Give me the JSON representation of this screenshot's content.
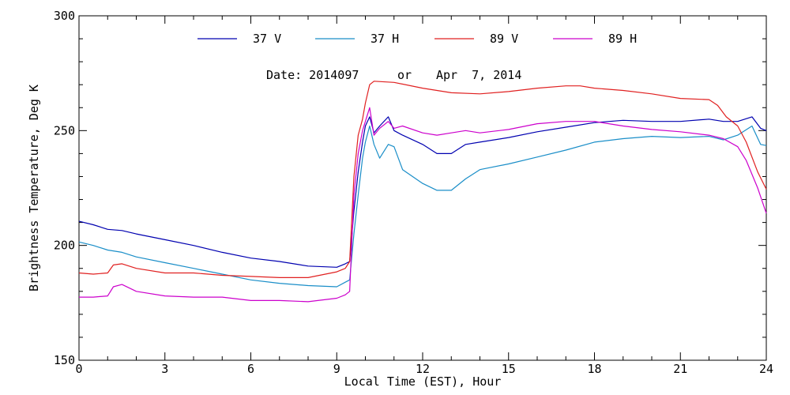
{
  "chart_data": {
    "type": "line",
    "xlabel": "Local Time (EST), Hour",
    "ylabel": "Brightness Temperature, Deg K",
    "xlim": [
      0,
      24
    ],
    "ylim": [
      150,
      300
    ],
    "xticks": [
      0,
      3,
      6,
      9,
      12,
      15,
      18,
      21,
      24
    ],
    "yticks": [
      150,
      200,
      250,
      300
    ],
    "annotation": {
      "date_label": "Date: 2014097",
      "or_label": "or",
      "date_text": "Apr  7, 2014"
    },
    "legend_position": "top",
    "series": [
      {
        "name": "37 V",
        "color": "#0000b0",
        "points": [
          [
            0,
            210.5
          ],
          [
            0.5,
            209
          ],
          [
            1,
            207
          ],
          [
            1.5,
            206.5
          ],
          [
            2,
            205
          ],
          [
            3,
            202.5
          ],
          [
            4,
            200
          ],
          [
            5,
            197
          ],
          [
            6,
            194.5
          ],
          [
            7,
            193
          ],
          [
            8,
            191
          ],
          [
            9,
            190.5
          ],
          [
            9.3,
            192
          ],
          [
            9.45,
            193
          ],
          [
            9.6,
            215
          ],
          [
            9.75,
            232
          ],
          [
            9.9,
            245
          ],
          [
            10,
            252
          ],
          [
            10.15,
            256
          ],
          [
            10.3,
            249
          ],
          [
            10.5,
            252
          ],
          [
            10.8,
            256
          ],
          [
            11,
            250
          ],
          [
            11.3,
            248
          ],
          [
            12,
            244
          ],
          [
            12.5,
            240
          ],
          [
            13,
            240
          ],
          [
            13.5,
            244
          ],
          [
            14,
            245
          ],
          [
            15,
            247
          ],
          [
            16,
            249.5
          ],
          [
            17,
            251.5
          ],
          [
            18,
            253.5
          ],
          [
            19,
            254.5
          ],
          [
            20,
            254
          ],
          [
            21,
            254
          ],
          [
            22,
            255
          ],
          [
            22.5,
            254
          ],
          [
            23,
            254
          ],
          [
            23.5,
            256
          ],
          [
            23.8,
            251
          ],
          [
            24,
            250
          ]
        ]
      },
      {
        "name": "37 H",
        "color": "#1a8ec8",
        "points": [
          [
            0,
            201.5
          ],
          [
            0.5,
            200
          ],
          [
            1,
            198
          ],
          [
            1.5,
            197
          ],
          [
            2,
            195
          ],
          [
            3,
            192.5
          ],
          [
            4,
            190
          ],
          [
            5,
            187.5
          ],
          [
            6,
            185
          ],
          [
            7,
            183.5
          ],
          [
            8,
            182.5
          ],
          [
            9,
            182
          ],
          [
            9.3,
            184
          ],
          [
            9.45,
            185
          ],
          [
            9.6,
            205
          ],
          [
            9.75,
            222
          ],
          [
            9.9,
            238
          ],
          [
            10,
            245
          ],
          [
            10.15,
            252
          ],
          [
            10.3,
            244
          ],
          [
            10.5,
            238
          ],
          [
            10.8,
            244
          ],
          [
            11,
            243
          ],
          [
            11.3,
            233
          ],
          [
            12,
            227
          ],
          [
            12.5,
            224
          ],
          [
            13,
            224
          ],
          [
            13.5,
            229
          ],
          [
            14,
            233
          ],
          [
            15,
            235.5
          ],
          [
            16,
            238.5
          ],
          [
            17,
            241.5
          ],
          [
            18,
            245
          ],
          [
            19,
            246.5
          ],
          [
            20,
            247.5
          ],
          [
            21,
            247
          ],
          [
            22,
            247.5
          ],
          [
            22.5,
            246
          ],
          [
            23,
            248
          ],
          [
            23.5,
            252
          ],
          [
            23.8,
            244
          ],
          [
            24,
            243.5
          ]
        ]
      },
      {
        "name": "89 V",
        "color": "#e02020",
        "points": [
          [
            0,
            188
          ],
          [
            0.5,
            187.5
          ],
          [
            1,
            188
          ],
          [
            1.2,
            191.5
          ],
          [
            1.5,
            192
          ],
          [
            2,
            190
          ],
          [
            3,
            188
          ],
          [
            4,
            188
          ],
          [
            5,
            187
          ],
          [
            6,
            186.5
          ],
          [
            7,
            186
          ],
          [
            8,
            186
          ],
          [
            9,
            188.5
          ],
          [
            9.3,
            190
          ],
          [
            9.45,
            193
          ],
          [
            9.6,
            230
          ],
          [
            9.75,
            248
          ],
          [
            9.9,
            255
          ],
          [
            10,
            262
          ],
          [
            10.15,
            270
          ],
          [
            10.3,
            271.5
          ],
          [
            11,
            271
          ],
          [
            12,
            268.5
          ],
          [
            13,
            266.5
          ],
          [
            14,
            266
          ],
          [
            15,
            267
          ],
          [
            16,
            268.5
          ],
          [
            17,
            269.5
          ],
          [
            17.5,
            269.5
          ],
          [
            18,
            268.5
          ],
          [
            19,
            267.5
          ],
          [
            20,
            266
          ],
          [
            21,
            264
          ],
          [
            22,
            263.5
          ],
          [
            22.3,
            261
          ],
          [
            22.6,
            256
          ],
          [
            23,
            252
          ],
          [
            23.3,
            245
          ],
          [
            23.7,
            232
          ],
          [
            24,
            224.5
          ]
        ]
      },
      {
        "name": "89 H",
        "color": "#cc00cc",
        "points": [
          [
            0,
            177.5
          ],
          [
            0.5,
            177.5
          ],
          [
            1,
            178
          ],
          [
            1.2,
            182
          ],
          [
            1.5,
            183
          ],
          [
            2,
            180
          ],
          [
            3,
            178
          ],
          [
            4,
            177.5
          ],
          [
            5,
            177.5
          ],
          [
            6,
            176
          ],
          [
            7,
            176
          ],
          [
            8,
            175.5
          ],
          [
            9,
            177
          ],
          [
            9.3,
            178.5
          ],
          [
            9.45,
            180
          ],
          [
            9.6,
            222
          ],
          [
            9.75,
            240
          ],
          [
            9.9,
            250
          ],
          [
            10,
            254
          ],
          [
            10.15,
            260
          ],
          [
            10.3,
            248
          ],
          [
            10.5,
            251
          ],
          [
            10.8,
            254
          ],
          [
            11,
            251
          ],
          [
            11.3,
            252
          ],
          [
            12,
            249
          ],
          [
            12.5,
            248
          ],
          [
            13,
            249
          ],
          [
            13.5,
            250
          ],
          [
            14,
            249
          ],
          [
            15,
            250.5
          ],
          [
            16,
            253
          ],
          [
            17,
            254
          ],
          [
            18,
            254
          ],
          [
            19,
            252
          ],
          [
            20,
            250.5
          ],
          [
            21,
            249.5
          ],
          [
            22,
            248
          ],
          [
            22.5,
            246.5
          ],
          [
            23,
            243
          ],
          [
            23.3,
            237
          ],
          [
            23.7,
            225
          ],
          [
            24,
            214
          ]
        ]
      }
    ]
  }
}
